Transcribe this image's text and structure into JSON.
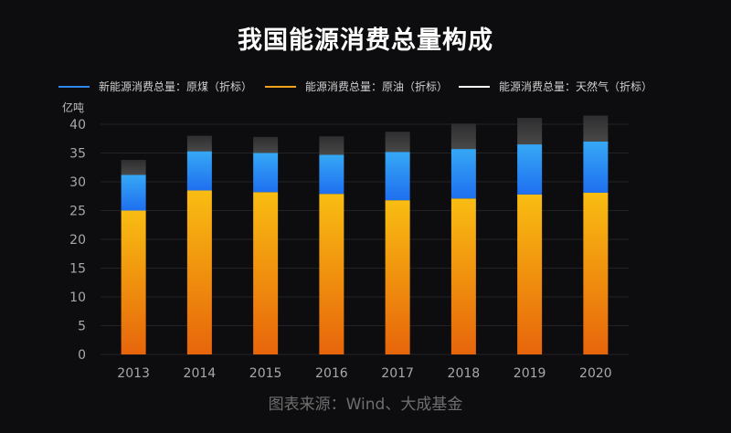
{
  "title": "我国能源消费总量构成",
  "source": "图表来源：Wind、大成基金",
  "chart_data": {
    "type": "bar",
    "stacked": true,
    "categories": [
      "2013",
      "2014",
      "2015",
      "2016",
      "2017",
      "2018",
      "2019",
      "2020"
    ],
    "series": [
      {
        "name": "能源消费总量：原油（折标）",
        "color": "#f7a21b",
        "values": [
          25.0,
          28.5,
          28.2,
          27.9,
          26.8,
          27.1,
          27.8,
          28.1
        ]
      },
      {
        "name": "新能源消费总量：原煤（折标）",
        "color": "#2f86f0",
        "values": [
          6.2,
          6.8,
          6.8,
          6.8,
          8.4,
          8.6,
          8.7,
          8.9
        ]
      },
      {
        "name": "能源消费总量：天然气（折标）",
        "color": "#3a3a3a",
        "values": [
          2.6,
          2.7,
          2.8,
          3.2,
          3.5,
          4.4,
          4.6,
          4.5
        ]
      }
    ],
    "legend_order": [
      1,
      0,
      2
    ],
    "legend_position": "top",
    "ylabel": "亿吨",
    "ylim": [
      0,
      40
    ],
    "yticks": [
      0,
      5,
      10,
      15,
      20,
      25,
      30,
      35,
      40
    ],
    "grid": true
  }
}
